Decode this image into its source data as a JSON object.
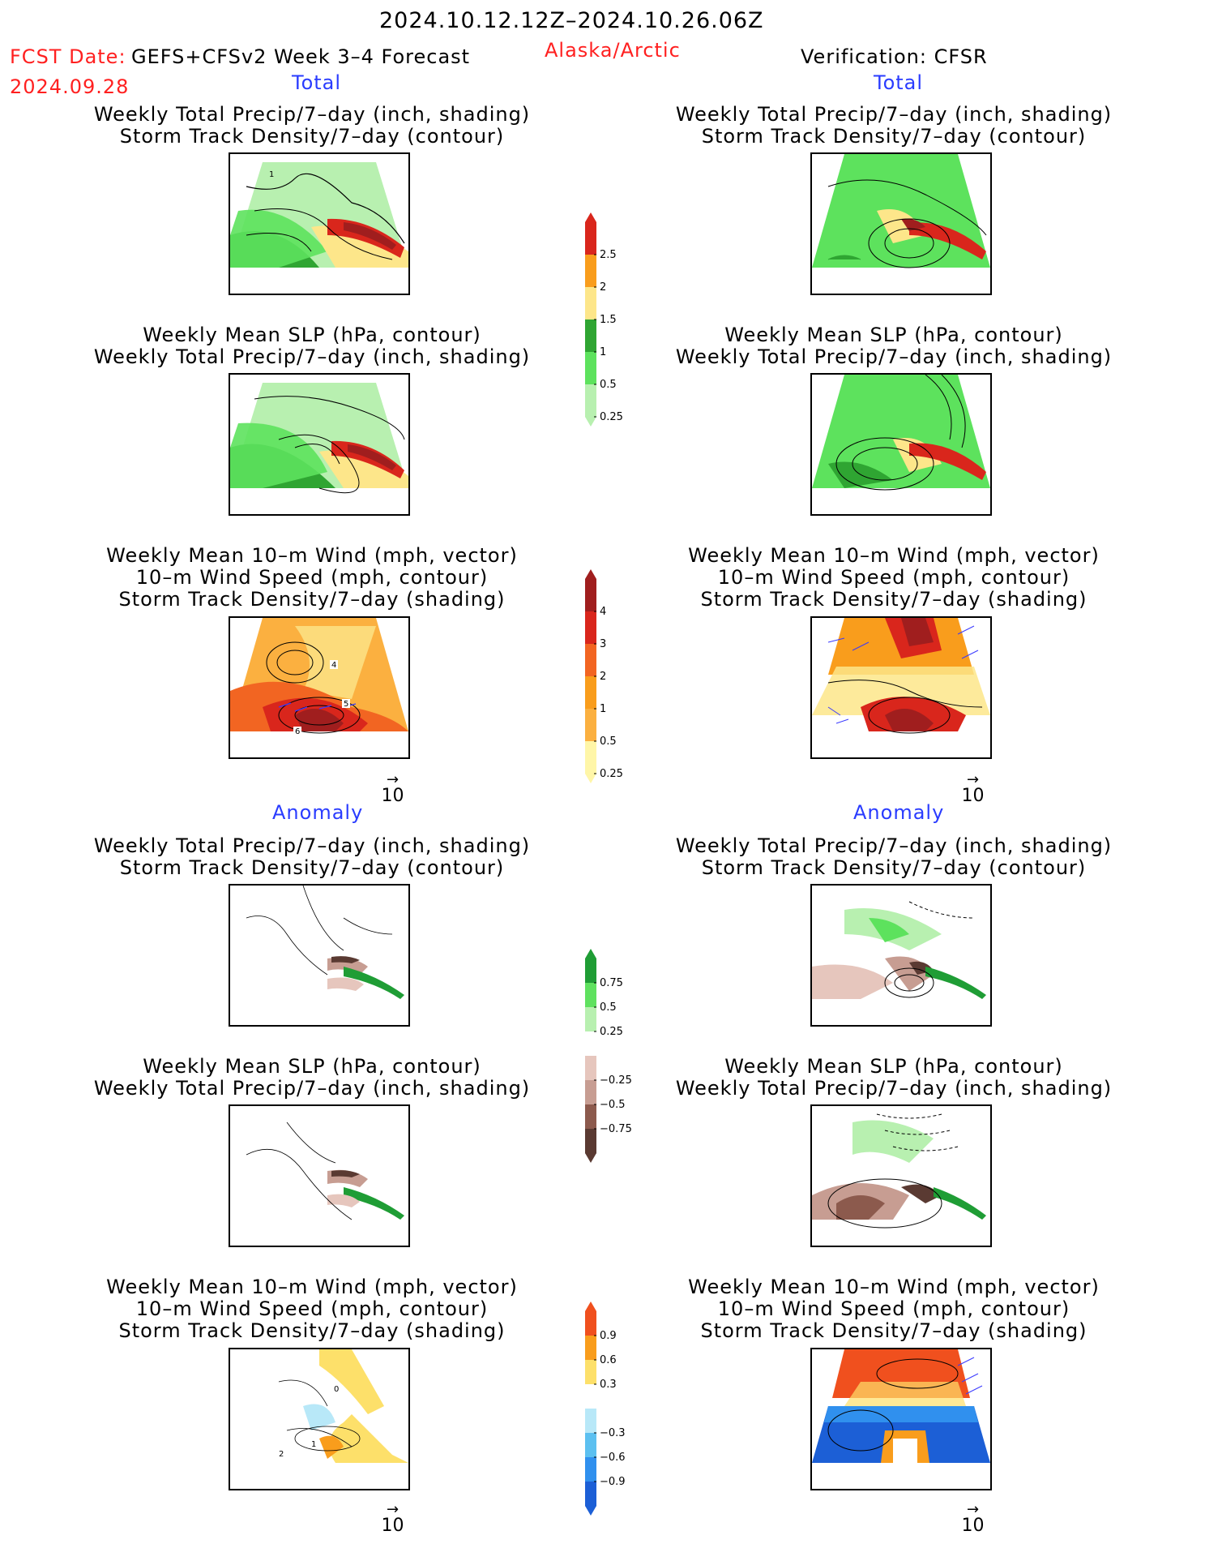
{
  "header": {
    "period": "2024.10.12.12Z–2024.10.26.06Z",
    "fcst_date_label": "FCST Date:",
    "model": "GEFS+CFSv2 Week 3–4 Forecast",
    "region": "Alaska/Arctic",
    "verification": "Verification: CFSR",
    "fcst_date": "2024.09.28"
  },
  "sections": {
    "total_left": "Total",
    "total_right": "Total",
    "anomaly_left": "Anomaly",
    "anomaly_right": "Anomaly"
  },
  "titles": {
    "precip_track": [
      "Weekly Total Precip/7–day (inch, shading)",
      "Storm Track Density/7–day (contour)"
    ],
    "slp_precip": [
      "Weekly Mean SLP (hPa, contour)",
      "Weekly Total Precip/7–day (inch, shading)"
    ],
    "wind_track": [
      "Weekly Mean 10–m Wind (mph, vector)",
      "10–m Wind Speed (mph, contour)",
      "Storm Track Density/7–day (shading)"
    ]
  },
  "vector_ref": "10",
  "colorbars": {
    "precip_total": {
      "labels": [
        "2.5",
        "2",
        "1.5",
        "1",
        "0.5",
        "0.25"
      ],
      "colors": [
        "#d9261c",
        "#f99d1c",
        "#fde68a",
        "#2fa532",
        "#5de25d",
        "#b8f0b0"
      ]
    },
    "track_total": {
      "labels": [
        "4",
        "3",
        "2",
        "1",
        "0.5",
        "0.25"
      ],
      "colors": [
        "#a01e1e",
        "#d9261c",
        "#f26522",
        "#f99d1c",
        "#fbb040",
        "#fff6a8"
      ]
    },
    "precip_anom": {
      "labels": [
        "0.75",
        "0.5",
        "0.25",
        "−0.25",
        "−0.5",
        "−0.75"
      ],
      "colors": [
        "#1f9d35",
        "#5fe15f",
        "#b8f0b0",
        "#ffffff",
        "#e6c6bd",
        "#c79d92",
        "#8c5a4d",
        "#5a3a32"
      ]
    },
    "track_anom": {
      "labels": [
        "0.9",
        "0.6",
        "0.3",
        "−0.3",
        "−0.6",
        "−0.9"
      ],
      "colors": [
        "#f0501e",
        "#f99d1c",
        "#fde06a",
        "#ffffff",
        "#b8e8f8",
        "#5cc0f0",
        "#3090ee",
        "#1c5fd6"
      ]
    }
  },
  "contour_labels": {
    "left_track_total": [
      "4",
      "5",
      "6"
    ],
    "left_precip_total": [
      "1"
    ],
    "left_track_anom": [
      "0",
      "1",
      "2"
    ]
  }
}
